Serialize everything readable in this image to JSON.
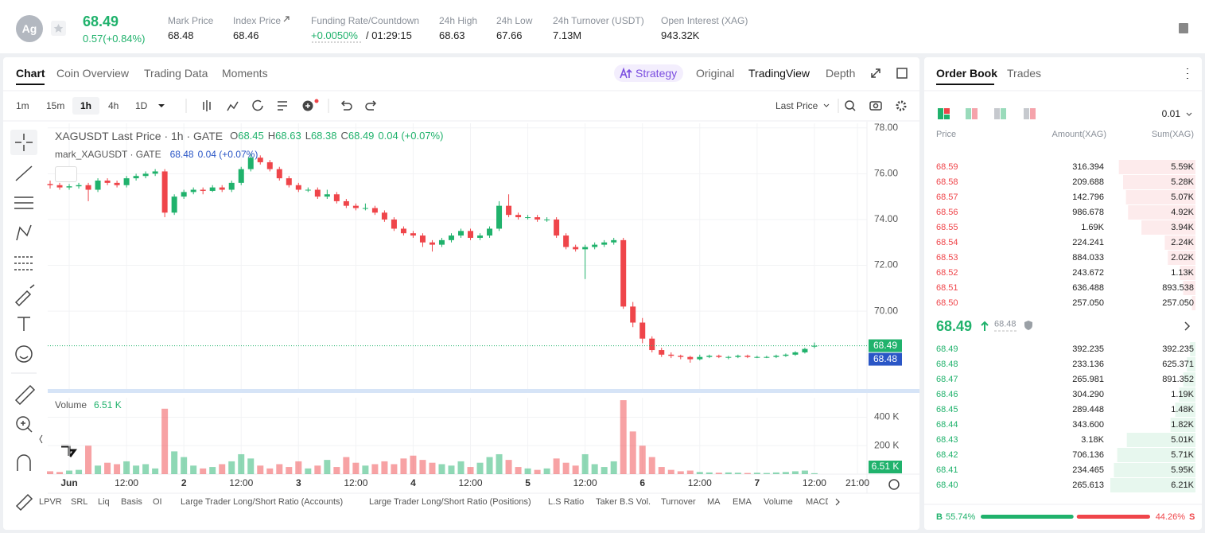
{
  "header": {
    "symbol_icon": "Ag",
    "price": "68.49",
    "change": "0.57(+0.84%)",
    "stats": [
      {
        "label": "Mark Price",
        "value": "68.48"
      },
      {
        "label": "Index Price",
        "value": "68.46"
      },
      {
        "label": "Funding Rate/Countdown",
        "value": "+0.0050%",
        "extra": "/ 01:29:15"
      },
      {
        "label": "24h High",
        "value": "68.63"
      },
      {
        "label": "24h Low",
        "value": "67.66"
      },
      {
        "label": "24h Turnover (USDT)",
        "value": "7.13M"
      },
      {
        "label": "Open Interest (XAG)",
        "value": "943.32K"
      }
    ]
  },
  "chart_tabs": [
    "Chart",
    "Coin Overview",
    "Trading Data",
    "Moments"
  ],
  "view_tabs": [
    "Strategy",
    "Original",
    "TradingView",
    "Depth"
  ],
  "intervals": [
    "1m",
    "15m",
    "1h",
    "4h",
    "1D"
  ],
  "price_source": "Last Price",
  "chart_data": {
    "type": "candlestick",
    "title": "XAGUSDT Last Price · 1h · GATE",
    "ohlc_labels": [
      "O",
      "H",
      "L",
      "C"
    ],
    "change": "0.04 (+0.07%)",
    "mark_title": "mark_XAGUSDT · GATE",
    "volume_title": "Volume",
    "volume_last_label": "6.51 K",
    "grid": true,
    "up_color": "#20b26c",
    "down_color": "#ef454a",
    "xlim": [
      -4.5,
      167
    ],
    "ylim": [
      66.6,
      78.2
    ],
    "vol_ylim": [
      0,
      537
    ],
    "xticks": [
      {
        "value": 0,
        "label": "Jun"
      },
      {
        "value": 12,
        "label": "12:00"
      },
      {
        "value": 24,
        "label": "2"
      },
      {
        "value": 36,
        "label": "12:00"
      },
      {
        "value": 48,
        "label": "3"
      },
      {
        "value": 60,
        "label": "12:00"
      },
      {
        "value": 72,
        "label": "4"
      },
      {
        "value": 84,
        "label": "12:00"
      },
      {
        "value": 96,
        "label": "5"
      },
      {
        "value": 108,
        "label": "12:00"
      },
      {
        "value": 120,
        "label": "6"
      },
      {
        "value": 132,
        "label": "12:00"
      },
      {
        "value": 144,
        "label": "7"
      },
      {
        "value": 156,
        "label": "12:00"
      },
      {
        "value": 165,
        "label": "21:00"
      }
    ],
    "yticks": [
      {
        "value": 70,
        "label": "70.00"
      },
      {
        "value": 72,
        "label": "72.00"
      },
      {
        "value": 74,
        "label": "74.00"
      },
      {
        "value": 76,
        "label": "76.00"
      },
      {
        "value": 78,
        "label": "78.00"
      }
    ],
    "vol_ticks": [
      {
        "value": 200,
        "label": "200 K"
      },
      {
        "value": 400,
        "label": "400 K"
      }
    ],
    "price_markers": [
      {
        "value": 68.49,
        "color": "#20b26c"
      },
      {
        "value": 68.48,
        "color": "#2a56c6"
      }
    ],
    "x": [
      -4,
      -2,
      0,
      2,
      4,
      6,
      8,
      10,
      12,
      14,
      16,
      18,
      20,
      22,
      24,
      26,
      28,
      30,
      32,
      34,
      36,
      38,
      40,
      42,
      44,
      46,
      48,
      50,
      52,
      54,
      56,
      58,
      60,
      62,
      64,
      66,
      68,
      70,
      72,
      74,
      76,
      78,
      80,
      82,
      84,
      86,
      88,
      90,
      92,
      94,
      96,
      98,
      100,
      102,
      104,
      106,
      108,
      110,
      112,
      114,
      116,
      118,
      120,
      122,
      124,
      126,
      128,
      130,
      132,
      134,
      136,
      138,
      140,
      142,
      144,
      146,
      148,
      150,
      152,
      154,
      156
    ],
    "candles": [
      [
        75.55,
        75.7,
        75.35,
        75.5
      ],
      [
        75.5,
        75.6,
        75.3,
        75.4
      ],
      [
        75.4,
        75.55,
        75.3,
        75.45
      ],
      [
        75.45,
        75.6,
        75.35,
        75.5
      ],
      [
        75.5,
        75.6,
        74.8,
        75.3
      ],
      [
        75.3,
        75.8,
        75.2,
        75.7
      ],
      [
        75.7,
        75.8,
        75.5,
        75.6
      ],
      [
        75.6,
        75.7,
        75.4,
        75.5
      ],
      [
        75.5,
        75.9,
        75.4,
        75.8
      ],
      [
        75.8,
        76.0,
        75.7,
        75.9
      ],
      [
        75.9,
        76.1,
        75.8,
        76.0
      ],
      [
        76.0,
        76.2,
        75.9,
        76.1
      ],
      [
        76.1,
        76.2,
        74.1,
        74.3
      ],
      [
        74.3,
        75.1,
        74.2,
        75.0
      ],
      [
        75.0,
        75.3,
        74.9,
        75.2
      ],
      [
        75.2,
        75.4,
        75.1,
        75.3
      ],
      [
        75.3,
        75.4,
        75.1,
        75.25
      ],
      [
        75.25,
        75.5,
        75.2,
        75.4
      ],
      [
        75.4,
        75.5,
        75.2,
        75.3
      ],
      [
        75.3,
        75.7,
        75.2,
        75.6
      ],
      [
        75.6,
        76.3,
        75.5,
        76.2
      ],
      [
        76.2,
        76.9,
        76.1,
        76.7
      ],
      [
        76.7,
        76.8,
        76.4,
        76.5
      ],
      [
        76.5,
        76.6,
        76.1,
        76.2
      ],
      [
        76.2,
        76.3,
        75.7,
        75.8
      ],
      [
        75.8,
        75.9,
        75.4,
        75.5
      ],
      [
        75.5,
        75.6,
        75.2,
        75.3
      ],
      [
        75.3,
        75.4,
        75.2,
        75.3
      ],
      [
        75.3,
        75.4,
        74.9,
        75.0
      ],
      [
        75.0,
        75.3,
        74.9,
        75.1
      ],
      [
        75.1,
        75.2,
        74.7,
        74.8
      ],
      [
        74.8,
        74.9,
        74.5,
        74.6
      ],
      [
        74.6,
        74.7,
        74.4,
        74.5
      ],
      [
        74.5,
        74.7,
        74.4,
        74.5
      ],
      [
        74.5,
        74.6,
        74.2,
        74.3
      ],
      [
        74.3,
        74.4,
        73.9,
        74.0
      ],
      [
        74.0,
        74.1,
        73.5,
        73.6
      ],
      [
        73.6,
        73.7,
        73.3,
        73.4
      ],
      [
        73.4,
        73.5,
        73.2,
        73.3
      ],
      [
        73.3,
        73.4,
        72.8,
        73.0
      ],
      [
        73.0,
        73.1,
        72.6,
        72.9
      ],
      [
        72.9,
        73.2,
        72.8,
        73.1
      ],
      [
        73.1,
        73.4,
        73.0,
        73.3
      ],
      [
        73.3,
        73.6,
        73.2,
        73.5
      ],
      [
        73.5,
        73.6,
        73.1,
        73.2
      ],
      [
        73.2,
        73.4,
        73.1,
        73.3
      ],
      [
        73.3,
        73.7,
        73.2,
        73.6
      ],
      [
        73.6,
        74.8,
        73.5,
        74.6
      ],
      [
        74.6,
        75.1,
        74.1,
        74.2
      ],
      [
        74.2,
        74.3,
        74.0,
        74.1
      ],
      [
        74.1,
        74.2,
        74.0,
        74.1
      ],
      [
        74.1,
        74.2,
        73.9,
        74.0
      ],
      [
        74.0,
        74.1,
        73.9,
        74.0
      ],
      [
        74.0,
        74.1,
        73.2,
        73.3
      ],
      [
        73.3,
        73.4,
        72.7,
        72.8
      ],
      [
        72.8,
        72.9,
        72.6,
        72.7
      ],
      [
        72.7,
        72.9,
        71.4,
        72.8
      ],
      [
        72.8,
        73.0,
        72.7,
        72.9
      ],
      [
        72.9,
        73.1,
        72.8,
        73.0
      ],
      [
        73.0,
        73.2,
        72.9,
        73.1
      ],
      [
        73.1,
        73.2,
        70.1,
        70.2
      ],
      [
        70.2,
        70.4,
        69.3,
        69.5
      ],
      [
        69.5,
        69.7,
        68.6,
        68.8
      ],
      [
        68.8,
        68.9,
        68.2,
        68.3
      ],
      [
        68.3,
        68.4,
        68.0,
        68.1
      ],
      [
        68.1,
        68.2,
        67.95,
        68.05
      ],
      [
        68.05,
        68.1,
        67.9,
        68.0
      ],
      [
        68.0,
        68.05,
        67.75,
        67.9
      ],
      [
        67.9,
        68.1,
        67.85,
        68.0
      ],
      [
        68.0,
        68.1,
        67.95,
        68.05
      ],
      [
        68.05,
        68.1,
        67.95,
        68.0
      ],
      [
        68.0,
        68.05,
        67.9,
        68.0
      ],
      [
        68.0,
        68.1,
        67.95,
        68.05
      ],
      [
        68.05,
        68.1,
        67.95,
        68.0
      ],
      [
        68.0,
        68.05,
        67.95,
        68.0
      ],
      [
        68.0,
        68.05,
        67.95,
        68.0
      ],
      [
        68.0,
        68.1,
        67.95,
        68.05
      ],
      [
        68.05,
        68.15,
        68.0,
        68.1
      ],
      [
        68.1,
        68.25,
        68.05,
        68.2
      ],
      [
        68.2,
        68.4,
        68.15,
        68.35
      ],
      [
        68.45,
        68.63,
        68.38,
        68.49
      ]
    ],
    "volumes": [
      20,
      15,
      25,
      30,
      200,
      60,
      80,
      70,
      90,
      60,
      70,
      40,
      460,
      160,
      120,
      60,
      40,
      50,
      70,
      90,
      140,
      110,
      60,
      40,
      70,
      50,
      90,
      40,
      60,
      100,
      50,
      120,
      80,
      60,
      70,
      90,
      70,
      110,
      130,
      100,
      80,
      70,
      60,
      90,
      50,
      80,
      120,
      140,
      100,
      50,
      40,
      30,
      40,
      110,
      80,
      60,
      140,
      70,
      50,
      90,
      520,
      300,
      200,
      120,
      50,
      30,
      20,
      25,
      15,
      12,
      10,
      12,
      10,
      8,
      10,
      8,
      12,
      15,
      20,
      25,
      6.51
    ]
  },
  "order_book": {
    "tabs": [
      "Order Book",
      "Trades"
    ],
    "tick_size": "0.01",
    "columns": [
      "Price",
      "Amount(XAG)",
      "Sum(XAG)"
    ],
    "asks": [
      {
        "price": "68.59",
        "amount": "316.394",
        "sum": {
          "value": 5590,
          "label": "5.59K"
        }
      },
      {
        "price": "68.58",
        "amount": "209.688",
        "sum": {
          "value": 5280,
          "label": "5.28K"
        }
      },
      {
        "price": "68.57",
        "amount": "142.796",
        "sum": {
          "value": 5070,
          "label": "5.07K"
        }
      },
      {
        "price": "68.56",
        "amount": "986.678",
        "sum": {
          "value": 4920,
          "label": "4.92K"
        }
      },
      {
        "price": "68.55",
        "amount": "1.69K",
        "sum": {
          "value": 3940,
          "label": "3.94K"
        }
      },
      {
        "price": "68.54",
        "amount": "224.241",
        "sum": {
          "value": 2240,
          "label": "2.24K"
        }
      },
      {
        "price": "68.53",
        "amount": "884.033",
        "sum": {
          "value": 2020,
          "label": "2.02K"
        }
      },
      {
        "price": "68.52",
        "amount": "243.672",
        "sum": {
          "value": 1130,
          "label": "1.13K"
        }
      },
      {
        "price": "68.51",
        "amount": "636.488",
        "sum": {
          "value": 893.538,
          "label": "893.538"
        }
      },
      {
        "price": "68.50",
        "amount": "257.050",
        "sum": {
          "value": 257.05,
          "label": "257.050"
        }
      }
    ],
    "last_price": "68.49",
    "mark_price": "68.48",
    "bids": [
      {
        "price": "68.49",
        "amount": "392.235",
        "sum": {
          "value": 392.235,
          "label": "392.235"
        }
      },
      {
        "price": "68.48",
        "amount": "233.136",
        "sum": {
          "value": 625.371,
          "label": "625.371"
        }
      },
      {
        "price": "68.47",
        "amount": "265.981",
        "sum": {
          "value": 891.352,
          "label": "891.352"
        }
      },
      {
        "price": "68.46",
        "amount": "304.290",
        "sum": {
          "value": 1190,
          "label": "1.19K"
        }
      },
      {
        "price": "68.45",
        "amount": "289.448",
        "sum": {
          "value": 1480,
          "label": "1.48K"
        }
      },
      {
        "price": "68.44",
        "amount": "343.600",
        "sum": {
          "value": 1820,
          "label": "1.82K"
        }
      },
      {
        "price": "68.43",
        "amount": "3.18K",
        "sum": {
          "value": 5010,
          "label": "5.01K"
        }
      },
      {
        "price": "68.42",
        "amount": "706.136",
        "sum": {
          "value": 5710,
          "label": "5.71K"
        }
      },
      {
        "price": "68.41",
        "amount": "234.465",
        "sum": {
          "value": 5950,
          "label": "5.95K"
        }
      },
      {
        "price": "68.40",
        "amount": "265.613",
        "sum": {
          "value": 6210,
          "label": "6.21K"
        }
      }
    ],
    "ratio": {
      "buy_label": "B",
      "buy": {
        "value": 55.74,
        "label": "55.74%"
      },
      "sell": {
        "value": 44.26,
        "label": "44.26%"
      },
      "sell_label": "S"
    }
  },
  "indicators": [
    "LPVR",
    "SRL",
    "Liq",
    "Basis",
    "OI",
    "Large Trader Long/Short Ratio (Accounts)",
    "Large Trader Long/Short Ratio (Positions)",
    "L.S Ratio",
    "Taker B.S Vol.",
    "Turnover",
    "MA",
    "EMA",
    "Volume",
    "MACD"
  ]
}
